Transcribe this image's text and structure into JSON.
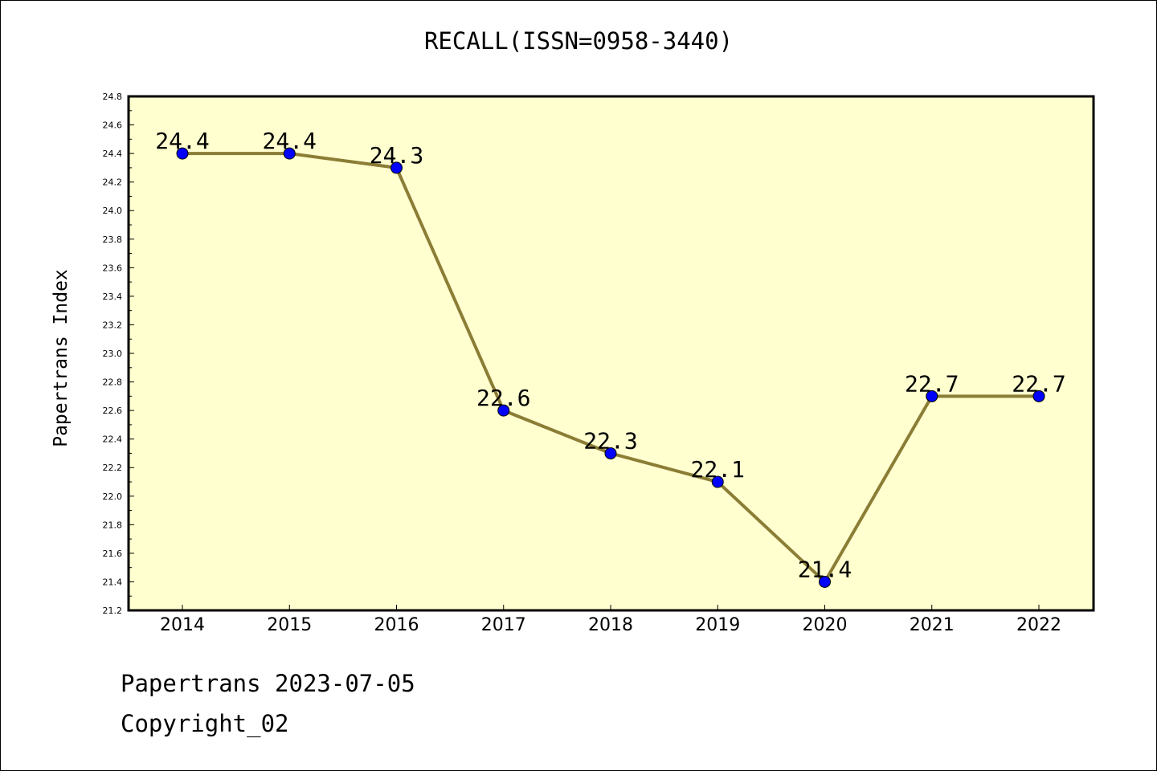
{
  "chart_data": {
    "type": "line",
    "title": "RECALL(ISSN=0958-3440)",
    "ylabel": "Papertrans Index",
    "xlabel": "",
    "categories": [
      "2014",
      "2015",
      "2016",
      "2017",
      "2018",
      "2019",
      "2020",
      "2021",
      "2022"
    ],
    "values": [
      24.4,
      24.4,
      24.3,
      22.6,
      22.3,
      22.1,
      21.4,
      22.7,
      22.7
    ],
    "data_labels": [
      "24.4",
      "24.4",
      "24.3",
      "22.6",
      "22.3",
      "22.1",
      "21.4",
      "22.7",
      "22.7"
    ],
    "ylim": [
      21.2,
      24.8
    ],
    "yticks": [
      "21.2",
      "21.4",
      "21.6",
      "21.8",
      "22.0",
      "22.2",
      "22.4",
      "22.6",
      "22.8",
      "23.0",
      "23.2",
      "23.4",
      "23.6",
      "23.8",
      "24.0",
      "24.2",
      "24.4",
      "24.6",
      "24.8"
    ],
    "grid": false,
    "colors": {
      "plot_background": "#ffffd0",
      "line": "#8b7d35",
      "marker": "#0000ff"
    }
  },
  "footer": {
    "line1": "Papertrans 2023-07-05",
    "line2": "Copyright_02"
  }
}
